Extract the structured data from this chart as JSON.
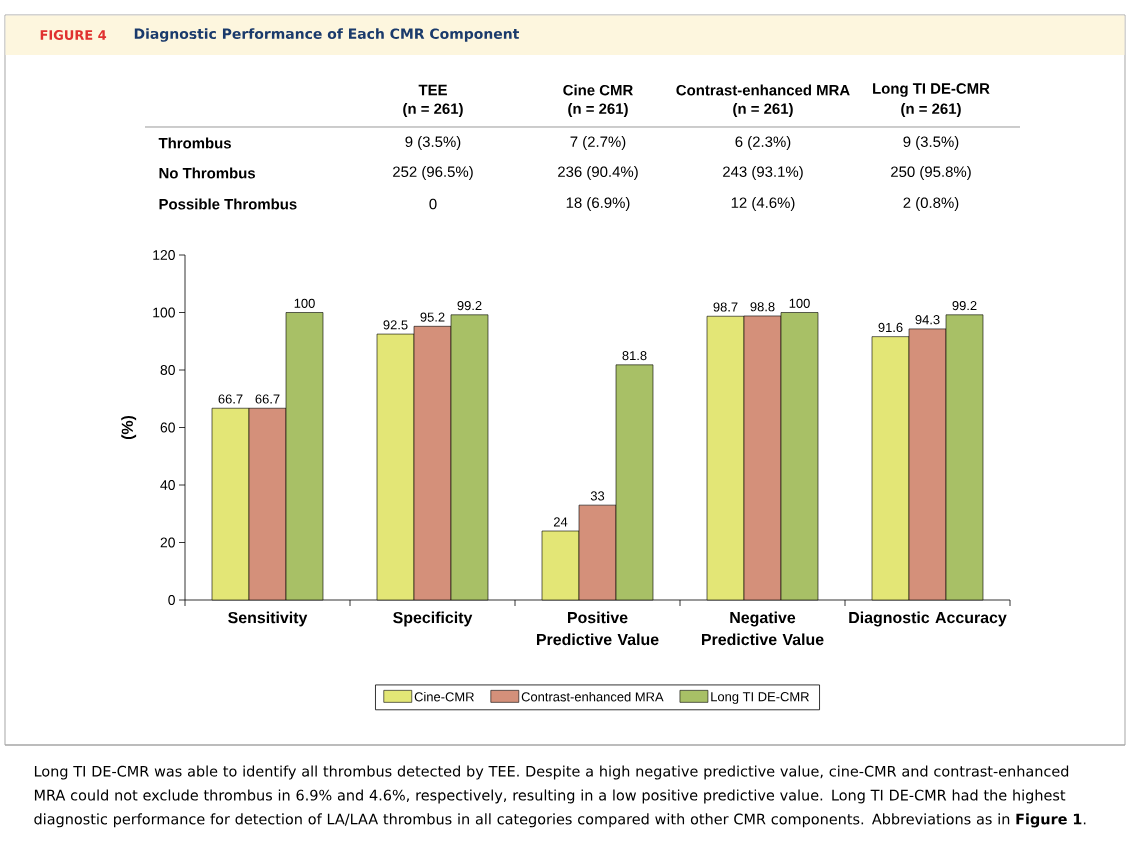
{
  "chart_data": {
    "type": "bar",
    "subtitle": "FIGURE 4",
    "title": "Diagnostic Performance of Each CMR Component",
    "ylabel": "(%)",
    "categories": [
      "Sensitivity",
      "Specificity",
      "Positive Predictive Value",
      "Negative Predictive Value",
      "Diagnostic Accuracy"
    ],
    "series": [
      {
        "name": "Cine-CMR",
        "color": "#e3e676",
        "values": [
          66.7,
          92.5,
          24,
          98.7,
          91.6
        ]
      },
      {
        "name": "Contrast-enhanced MRA",
        "color": "#d4907a",
        "values": [
          66.7,
          95.2,
          33,
          98.8,
          94.3
        ]
      },
      {
        "name": "Long TI DE-CMR",
        "color": "#a8c066",
        "values": [
          100,
          99.2,
          81.8,
          100,
          99.2
        ]
      }
    ],
    "ylim": [
      0,
      120
    ],
    "yticks": [
      0,
      20,
      40,
      60,
      80,
      100,
      120
    ],
    "data_labels": true,
    "legend": "bottom",
    "grid": false,
    "annotations": [
      "TEE",
      "Cine CMR",
      "Contrast-enhanced MRA",
      "Long TI DE-CMR",
      "(n = 261)",
      "(n = 261)",
      "(n = 261)",
      "(n = 261)",
      "Thrombus",
      "9 (3.5%)",
      "7 (2.7%)",
      "6 (2.3%)",
      "9 (3.5%)",
      "No Thrombus",
      "252 (96.5%)",
      "236 (90.4%)",
      "243 (93.1%)",
      "250 (95.8%)",
      "Possible Thrombus",
      "0",
      "18 (6.9%)",
      "12 (4.6%)",
      "2 (0.8%)",
      "Long TI DE-CMR was able to identify all thrombus detected by TEE. Despite a high negative predictive value, cine-CMR and contrast-enhanced MRA could not exclude thrombus in 6.9% and 4.6%, respectively, resulting in a low positive predictive value. Long TI DE-CMR had the highest diagnostic performance for detection of LA/LAA thrombus in all categories compared with other CMR components. Abbreviations as in **Figure 1**."
    ]
  }
}
